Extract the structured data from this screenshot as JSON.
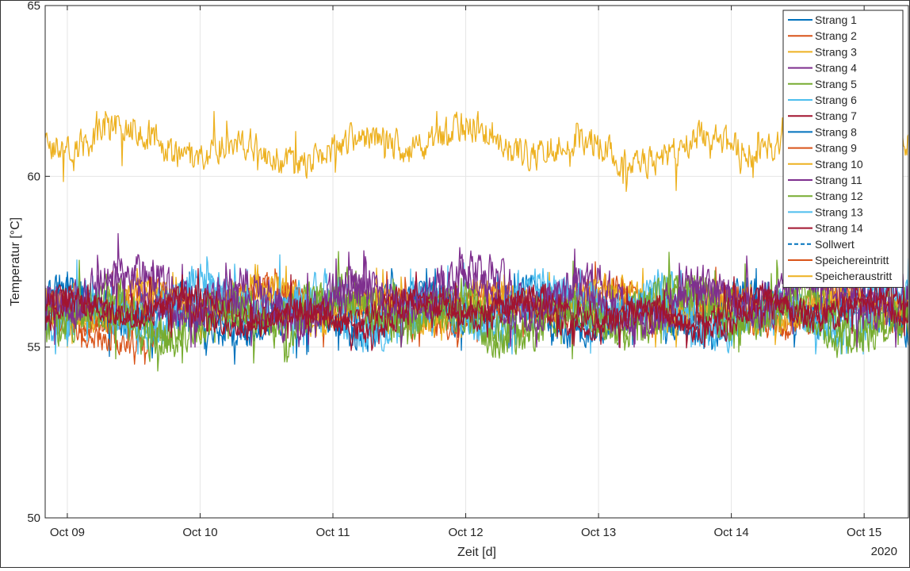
{
  "chart_data": {
    "type": "line",
    "title": "",
    "xlabel": "Zeit [d]",
    "ylabel": "Temperatur [°C]",
    "year_label": "2020",
    "xlim": [
      "2020-10-08T20:00",
      "2020-10-15T08:00"
    ],
    "ylim": [
      50,
      65
    ],
    "x_ticks": [
      "2020-10-09",
      "2020-10-10",
      "2020-10-11",
      "2020-10-12",
      "2020-10-13",
      "2020-10-14",
      "2020-10-15"
    ],
    "x_tick_labels": [
      "Oct 09",
      "Oct 10",
      "Oct 11",
      "Oct 12",
      "Oct 13",
      "Oct 14",
      "Oct 15"
    ],
    "y_ticks": [
      50,
      55,
      60,
      65
    ],
    "y_tick_labels": [
      "50",
      "55",
      "60",
      "65"
    ],
    "grid": true,
    "legend_position": "top-right",
    "series": [
      {
        "name": "Strang 1",
        "color": "#0072BD",
        "style": "solid",
        "x_start": "2020-10-08T20:00",
        "x_end": "2020-10-15T08:00",
        "mean": 56.0,
        "range": [
          54.2,
          57.2
        ]
      },
      {
        "name": "Strang 2",
        "color": "#D95319",
        "style": "solid",
        "x_start": "2020-10-08T20:00",
        "x_end": "2020-10-09T19:00",
        "mean": 55.3,
        "range": [
          54.5,
          56.3
        ]
      },
      {
        "name": "Strang 3",
        "color": "#EDB120",
        "style": "solid",
        "x_start": "2020-10-08T20:00",
        "x_end": "2020-10-15T08:00",
        "mean": 56.3,
        "range": [
          55.2,
          57.4
        ]
      },
      {
        "name": "Strang 4",
        "color": "#7E2F8E",
        "style": "solid",
        "x_start": "2020-10-08T20:00",
        "x_end": "2020-10-15T08:00",
        "mean": 56.5,
        "range": [
          55.0,
          58.5
        ]
      },
      {
        "name": "Strang 5",
        "color": "#77AC30",
        "style": "solid",
        "x_start": "2020-10-08T20:00",
        "x_end": "2020-10-15T08:00",
        "mean": 56.0,
        "range": [
          54.3,
          57.8
        ]
      },
      {
        "name": "Strang 6",
        "color": "#4DBEEE",
        "style": "solid",
        "x_start": "2020-10-08T20:00",
        "x_end": "2020-10-15T08:00",
        "mean": 56.1,
        "range": [
          54.8,
          58.2
        ]
      },
      {
        "name": "Strang 7",
        "color": "#A2142F",
        "style": "solid",
        "x_start": "2020-10-08T20:00",
        "x_end": "2020-10-15T08:00",
        "mean": 56.0,
        "range": [
          54.9,
          57.3
        ]
      },
      {
        "name": "Strang 8",
        "color": "#0072BD",
        "style": "solid",
        "x_start": "2020-10-08T20:00",
        "x_end": "2020-10-15T08:00",
        "mean": 56.0,
        "range": [
          54.5,
          57.3
        ]
      },
      {
        "name": "Strang 9",
        "color": "#D95319",
        "style": "solid",
        "x_start": "2020-10-08T20:00",
        "x_end": "2020-10-15T08:00",
        "mean": 56.2,
        "range": [
          55.0,
          57.5
        ]
      },
      {
        "name": "Strang 10",
        "color": "#EDB120",
        "style": "solid",
        "x_start": "2020-10-08T20:00",
        "x_end": "2020-10-15T08:00",
        "mean": 56.2,
        "range": [
          55.0,
          57.5
        ]
      },
      {
        "name": "Strang 11",
        "color": "#7E2F8E",
        "style": "solid",
        "x_start": "2020-10-08T20:00",
        "x_end": "2020-10-15T08:00",
        "mean": 56.4,
        "range": [
          55.0,
          58.3
        ]
      },
      {
        "name": "Strang 12",
        "color": "#77AC30",
        "style": "solid",
        "x_start": "2020-10-08T20:00",
        "x_end": "2020-10-15T08:00",
        "mean": 55.9,
        "range": [
          54.3,
          57.6
        ]
      },
      {
        "name": "Strang 13",
        "color": "#4DBEEE",
        "style": "solid",
        "x_start": "2020-10-08T20:00",
        "x_end": "2020-10-15T08:00",
        "mean": 56.1,
        "range": [
          54.8,
          58.1
        ]
      },
      {
        "name": "Strang 14",
        "color": "#A2142F",
        "style": "solid",
        "x_start": "2020-10-08T20:00",
        "x_end": "2020-10-15T08:00",
        "mean": 56.0,
        "range": [
          55.0,
          57.2
        ]
      },
      {
        "name": "Sollwert",
        "color": "#0072BD",
        "style": "dashed",
        "x_start": "2020-10-08T20:00",
        "x_end": "2020-10-15T08:00",
        "mean": 56.0,
        "range": [
          56.0,
          56.0
        ]
      },
      {
        "name": "Speichereintritt",
        "color": "#D95319",
        "style": "solid",
        "x_start": "2020-10-08T20:00",
        "x_end": "2020-10-15T08:00",
        "mean": 56.2,
        "range": [
          55.0,
          57.5
        ]
      },
      {
        "name": "Speicheraustritt",
        "color": "#EDB120",
        "style": "solid",
        "x_start": "2020-10-08T20:00",
        "x_end": "2020-10-15T08:00",
        "mean": 60.9,
        "range": [
          59.2,
          61.9
        ]
      }
    ]
  }
}
